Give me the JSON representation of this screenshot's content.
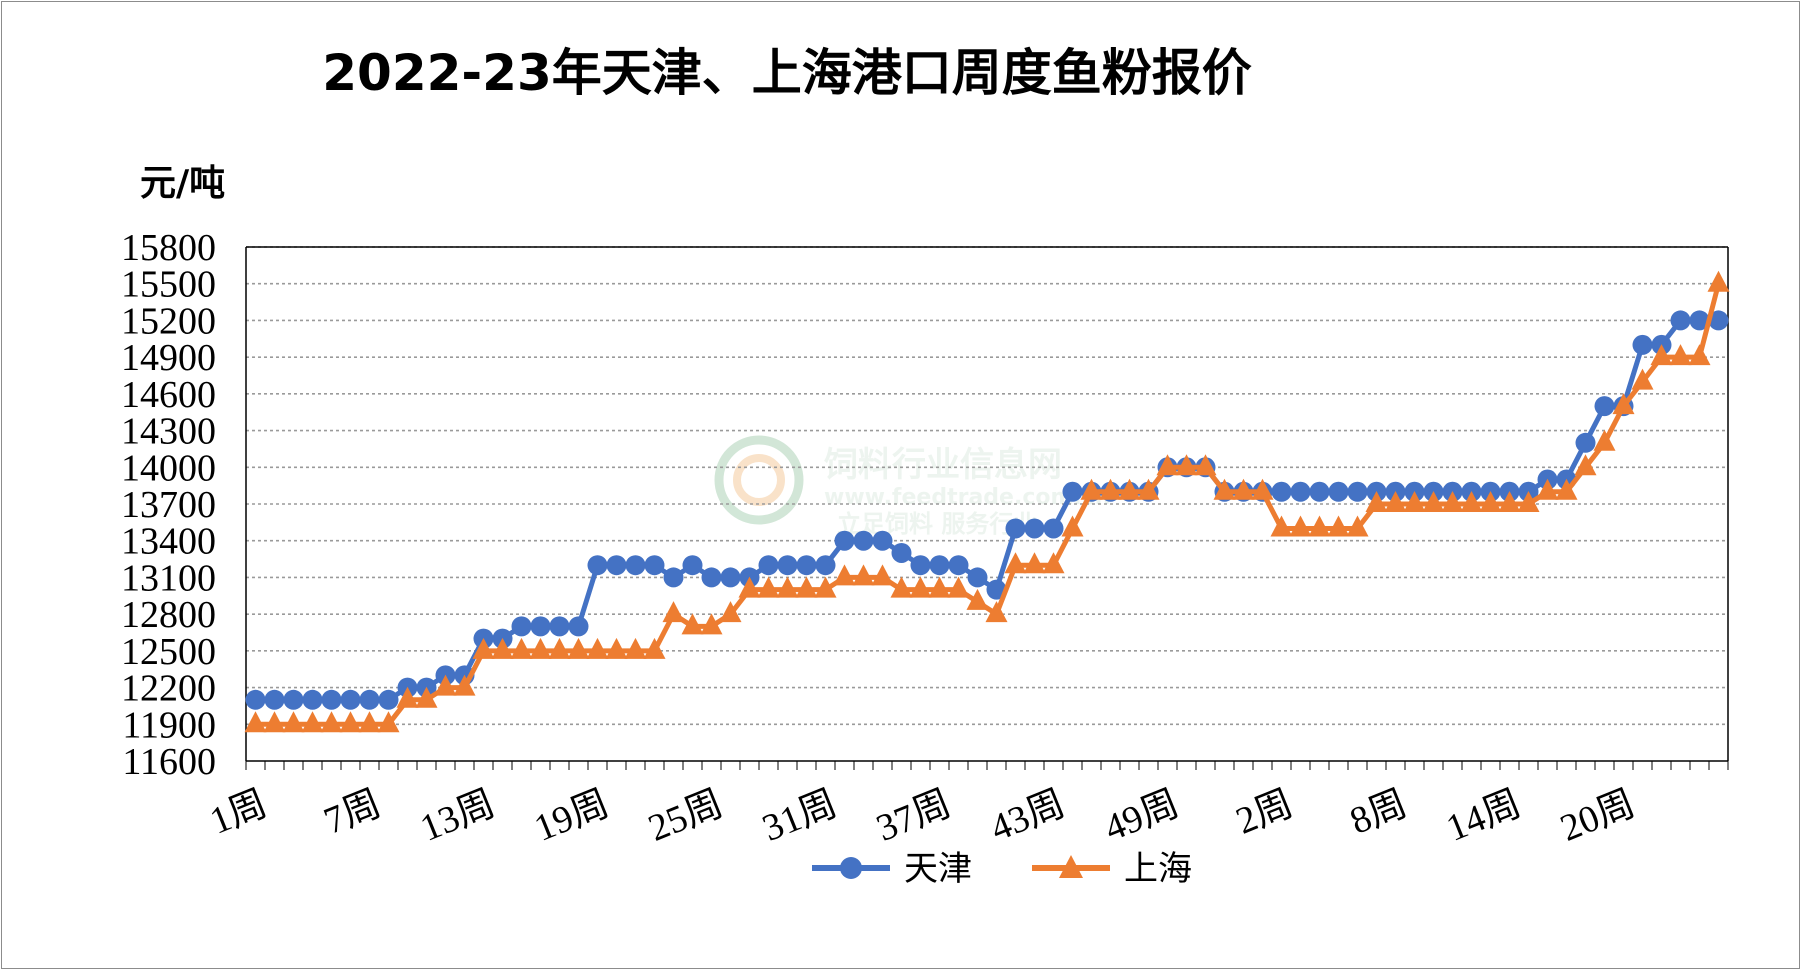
{
  "colors": {
    "tianjin": "#4472C4",
    "shanghai": "#ED7D31",
    "grid": "#9a9a9a",
    "axis": "#000000"
  },
  "chart_data": {
    "type": "line",
    "title": "2022-23年天津、上海港口周度鱼粉报价",
    "ylabel": "元/吨",
    "xlabel": "",
    "ylim": [
      11600,
      15800
    ],
    "yticks": [
      11600,
      11900,
      12200,
      12500,
      12800,
      13100,
      13400,
      13700,
      14000,
      14300,
      14600,
      14900,
      15200,
      15500,
      15800
    ],
    "grid": true,
    "legend_position": "bottom",
    "x_tick_labels": [
      "1周",
      "7周",
      "13周",
      "19周",
      "25周",
      "31周",
      "37周",
      "43周",
      "49周",
      "2周",
      "8周",
      "14周",
      "20周"
    ],
    "x_tick_every": 6,
    "series": [
      {
        "name": "天津",
        "marker": "circle",
        "values": [
          12100,
          12100,
          12100,
          12100,
          12100,
          12100,
          12100,
          12100,
          12200,
          12200,
          12300,
          12300,
          12600,
          12600,
          12700,
          12700,
          12700,
          12700,
          13200,
          13200,
          13200,
          13200,
          13100,
          13200,
          13100,
          13100,
          13100,
          13200,
          13200,
          13200,
          13200,
          13400,
          13400,
          13400,
          13300,
          13200,
          13200,
          13200,
          13100,
          13000,
          13500,
          13500,
          13500,
          13800,
          13800,
          13800,
          13800,
          13800,
          14000,
          14000,
          14000,
          13800,
          13800,
          13800,
          13800,
          13800,
          13800,
          13800,
          13800,
          13800,
          13800,
          13800,
          13800,
          13800,
          13800,
          13800,
          13800,
          13800,
          13900,
          13900,
          14200,
          14500,
          14500,
          15000,
          15000,
          15200,
          15200,
          15200
        ]
      },
      {
        "name": "上海",
        "marker": "triangle",
        "values": [
          11900,
          11900,
          11900,
          11900,
          11900,
          11900,
          11900,
          11900,
          12100,
          12100,
          12200,
          12200,
          12500,
          12500,
          12500,
          12500,
          12500,
          12500,
          12500,
          12500,
          12500,
          12500,
          12800,
          12700,
          12700,
          12800,
          13000,
          13000,
          13000,
          13000,
          13000,
          13100,
          13100,
          13100,
          13000,
          13000,
          13000,
          13000,
          12900,
          12800,
          13200,
          13200,
          13200,
          13500,
          13800,
          13800,
          13800,
          13800,
          14000,
          14000,
          14000,
          13800,
          13800,
          13800,
          13500,
          13500,
          13500,
          13500,
          13500,
          13700,
          13700,
          13700,
          13700,
          13700,
          13700,
          13700,
          13700,
          13700,
          13800,
          13800,
          14000,
          14200,
          14500,
          14700,
          14900,
          14900,
          14900,
          15500
        ]
      }
    ]
  },
  "watermark": {
    "name": "饲料行业信息网",
    "url": "www.feedtrade.com.cn",
    "slogan": "立足饲料  服务行业"
  }
}
